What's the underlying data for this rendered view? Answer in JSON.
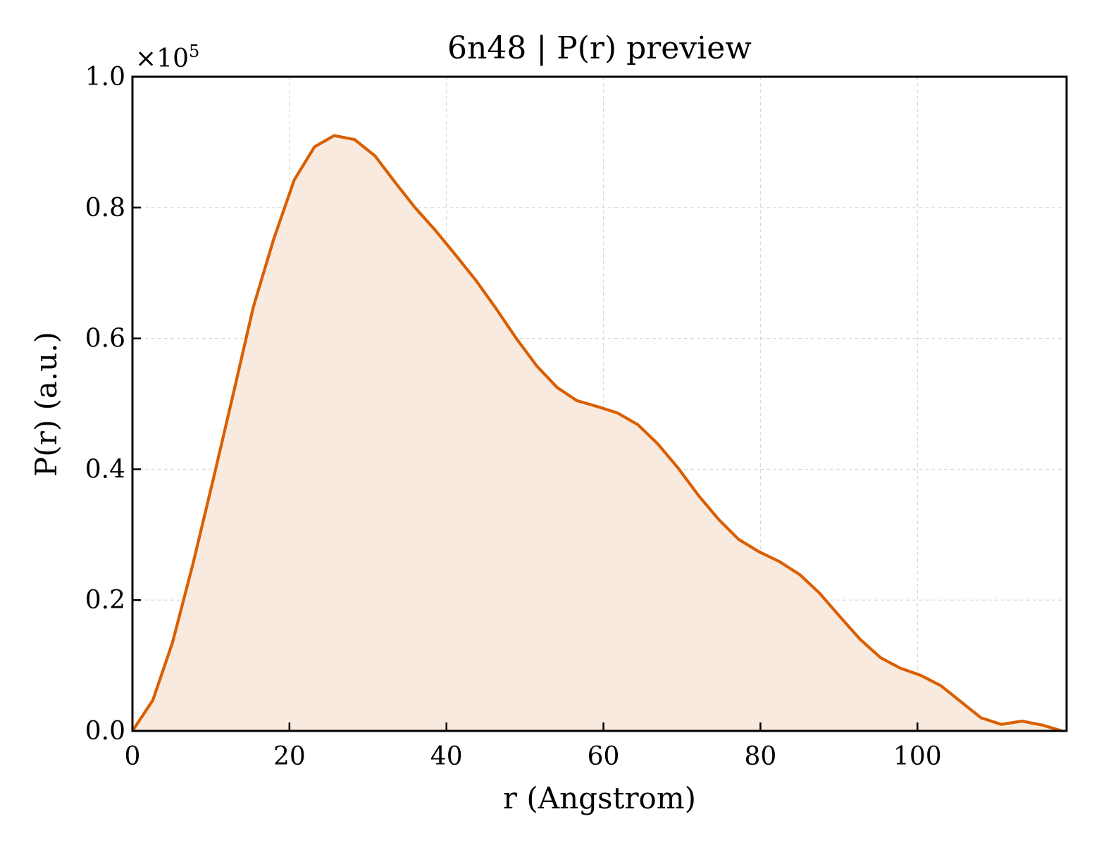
{
  "chart_data": {
    "type": "area",
    "title": "6n48 | P(r) preview",
    "xlabel": "r (Angstrom)",
    "ylabel": "P(r) (a.u.)",
    "y_multiplier_label": "×10",
    "y_multiplier_exponent": "5",
    "xlim": [
      0,
      119
    ],
    "ylim": [
      0,
      1.0
    ],
    "xticks": [
      0,
      20,
      40,
      60,
      80,
      100
    ],
    "xtick_labels": [
      "0",
      "20",
      "40",
      "60",
      "80",
      "100"
    ],
    "yticks": [
      0,
      0.2,
      0.4,
      0.6,
      0.8,
      1.0
    ],
    "ytick_labels": [
      "0.0",
      "0.2",
      "0.4",
      "0.6",
      "0.8",
      "1.0"
    ],
    "grid": true,
    "legend": "none",
    "series": [
      {
        "color": "#d95f02",
        "fill_color": "#f9eadf",
        "x": [
          0,
          2.6,
          5.1,
          7.7,
          10.3,
          12.9,
          15.4,
          18.0,
          20.6,
          23.2,
          25.7,
          28.3,
          30.9,
          33.5,
          36.0,
          38.6,
          41.2,
          43.8,
          46.3,
          48.9,
          51.5,
          54.1,
          56.6,
          59.2,
          61.8,
          64.4,
          66.9,
          69.5,
          72.1,
          74.7,
          77.2,
          79.8,
          82.4,
          85.0,
          87.5,
          90.1,
          92.7,
          95.3,
          97.8,
          100.4,
          103.0,
          105.6,
          108.1,
          110.7,
          113.3,
          115.9,
          118.4
        ],
        "y": [
          0.0,
          0.047,
          0.135,
          0.255,
          0.385,
          0.518,
          0.648,
          0.752,
          0.842,
          0.893,
          0.91,
          0.904,
          0.879,
          0.838,
          0.8,
          0.765,
          0.727,
          0.688,
          0.646,
          0.6,
          0.558,
          0.525,
          0.505,
          0.496,
          0.486,
          0.468,
          0.439,
          0.402,
          0.36,
          0.323,
          0.293,
          0.274,
          0.259,
          0.239,
          0.211,
          0.175,
          0.14,
          0.112,
          0.096,
          0.085,
          0.069,
          0.044,
          0.02,
          0.01,
          0.015,
          0.009,
          0.0
        ]
      }
    ]
  }
}
